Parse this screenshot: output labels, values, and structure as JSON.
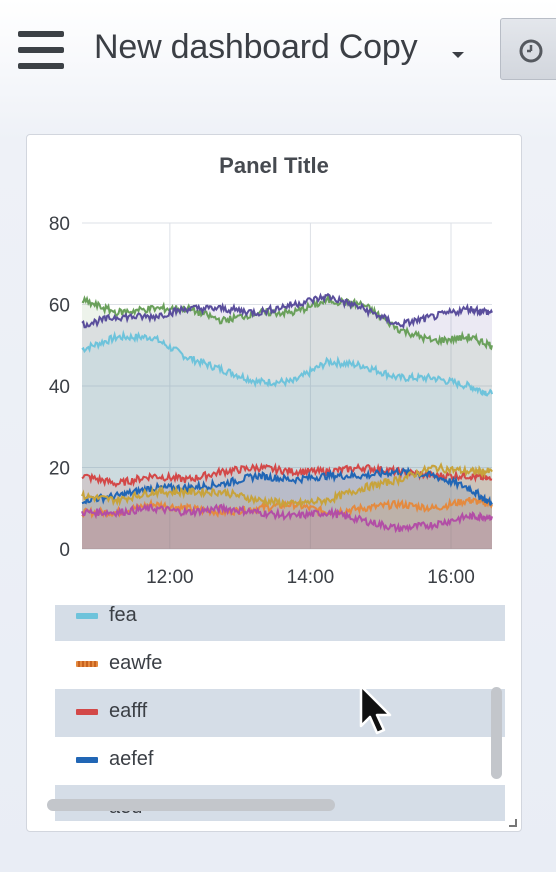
{
  "topbar": {
    "menu_icon": "hamburger-menu-icon",
    "dashboard_title": "New dashboard Copy",
    "title_dropdown_icon": "caret-down-icon",
    "time_picker_icon": "clock-icon"
  },
  "panel": {
    "title": "Panel Title"
  },
  "chart_data": {
    "type": "area",
    "title": "Panel Title",
    "xlabel": "",
    "ylabel": "",
    "x_ticks": [
      "12:00",
      "14:00",
      "16:00"
    ],
    "y_ticks": [
      "0",
      "20",
      "40",
      "60",
      "80"
    ],
    "xlim": [
      "10:45",
      "16:35"
    ],
    "ylim": [
      0,
      80
    ],
    "grid": true,
    "legend": "below",
    "x": [
      "10:45",
      "11:15",
      "11:45",
      "12:15",
      "12:45",
      "13:15",
      "13:45",
      "14:15",
      "14:45",
      "15:15",
      "15:45",
      "16:15",
      "16:35"
    ],
    "series": [
      {
        "name": "fea",
        "color": "#6ec3db",
        "values": [
          49,
          52,
          52,
          47,
          44,
          41,
          41,
          46,
          45,
          42,
          42,
          40,
          38
        ]
      },
      {
        "name": "eawfe",
        "color": "#e48a3f",
        "values": [
          9,
          9,
          11,
          10,
          9,
          10,
          11,
          9,
          10,
          11,
          10,
          12,
          11
        ]
      },
      {
        "name": "eafff",
        "color": "#d34848",
        "values": [
          18,
          16,
          18,
          17,
          19,
          20,
          19,
          19,
          20,
          19,
          18,
          18,
          17
        ]
      },
      {
        "name": "aefef",
        "color": "#2166b5",
        "values": [
          12,
          13,
          15,
          15,
          16,
          18,
          17,
          18,
          18,
          19,
          18,
          15,
          11
        ]
      },
      {
        "name": "",
        "color": "#b24ea6",
        "values": [
          9,
          9,
          10,
          9,
          10,
          9,
          8,
          9,
          7,
          5,
          6,
          8,
          8
        ]
      },
      {
        "name": "",
        "color": "#c7a33c",
        "values": [
          13,
          12,
          14,
          14,
          14,
          12,
          11,
          12,
          15,
          17,
          20,
          19,
          19
        ]
      },
      {
        "name": "",
        "color": "#6aa05b",
        "values": [
          61,
          58,
          59,
          59,
          56,
          58,
          58,
          61,
          60,
          54,
          51,
          52,
          50
        ]
      },
      {
        "name": "",
        "color": "#5a4e9c",
        "values": [
          55,
          57,
          57,
          59,
          59,
          58,
          60,
          62,
          59,
          55,
          57,
          59,
          58
        ]
      }
    ]
  },
  "legend": {
    "items": [
      {
        "label": "fea",
        "color": "#6ec3db"
      },
      {
        "label": "eawfe",
        "color": "#e48a3f"
      },
      {
        "label": "eafff",
        "color": "#d34848"
      },
      {
        "label": "aefef",
        "color": "#2166b5"
      },
      {
        "label": "aeu",
        "color": "#b24ea6"
      }
    ]
  }
}
